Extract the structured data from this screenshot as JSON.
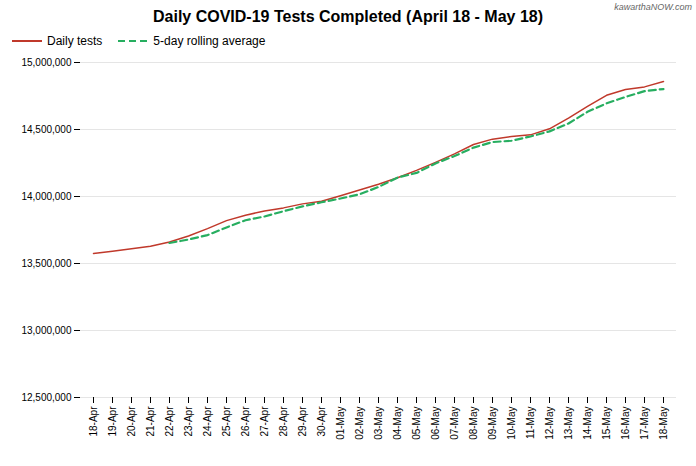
{
  "chart_data": {
    "type": "line",
    "title": "Daily COVID-19 Tests Completed (April 18 - May 18)",
    "annotations": [
      "kawarthaNOW.com"
    ],
    "categories": [
      "18-Apr",
      "19-Apr",
      "20-Apr",
      "21-Apr",
      "22-Apr",
      "23-Apr",
      "24-Apr",
      "25-Apr",
      "26-Apr",
      "27-Apr",
      "28-Apr",
      "29-Apr",
      "30-Apr",
      "01-May",
      "02-May",
      "03-May",
      "04-May",
      "05-May",
      "06-May",
      "07-May",
      "08-May",
      "09-May",
      "10-May",
      "11-May",
      "12-May",
      "13-May",
      "14-May",
      "15-May",
      "16-May",
      "17-May",
      "18-May"
    ],
    "series": [
      {
        "name": "Daily tests",
        "color": "#c0392b",
        "line_style": "solid",
        "values": [
          13575000,
          13592000,
          13610000,
          13628000,
          13660000,
          13705000,
          13760000,
          13820000,
          13860000,
          13892000,
          13915000,
          13945000,
          13965000,
          14005000,
          14048000,
          14092000,
          14140000,
          14195000,
          14255000,
          14318000,
          14388000,
          14428000,
          14448000,
          14460000,
          14505000,
          14585000,
          14672000,
          14755000,
          14798000,
          14818000,
          14858000
        ]
      },
      {
        "name": "5-day rolling average",
        "color": "#27ae60",
        "line_style": "dashed",
        "values": [
          null,
          null,
          null,
          null,
          13653000,
          13679000,
          13712000,
          13769000,
          13823000,
          13851000,
          13890000,
          13926000,
          13957000,
          13985000,
          14016000,
          14071000,
          14141000,
          14176000,
          14247000,
          14302000,
          14365000,
          14406000,
          14416000,
          14448000,
          14486000,
          14545000,
          14632000,
          14695000,
          14743000,
          14786000,
          14802000
        ]
      }
    ],
    "ylim": [
      12500000,
      15000000
    ],
    "yticks": [
      {
        "value": 12500000,
        "label": "12,500,000"
      },
      {
        "value": 13000000,
        "label": "13,000,000"
      },
      {
        "value": 13500000,
        "label": "13,500,000"
      },
      {
        "value": 14000000,
        "label": "14,000,000"
      },
      {
        "value": 14500000,
        "label": "14,500,000"
      },
      {
        "value": 15000000,
        "label": "15,000,000"
      }
    ],
    "grid": true,
    "legend": "upper left"
  }
}
